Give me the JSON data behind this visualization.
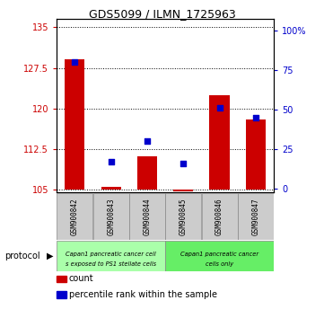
{
  "title": "GDS5099 / ILMN_1725963",
  "samples": [
    "GSM900842",
    "GSM900843",
    "GSM900844",
    "GSM900845",
    "GSM900846",
    "GSM900847"
  ],
  "bar_bottoms": [
    105,
    105,
    105,
    105,
    105,
    105
  ],
  "bar_tops": [
    129.0,
    105.6,
    111.2,
    104.7,
    122.5,
    118.0
  ],
  "percentile_values": [
    80.0,
    17.0,
    30.0,
    16.0,
    51.0,
    45.0
  ],
  "ylim_left": [
    104.5,
    136.5
  ],
  "ylim_right": [
    -2.5,
    107.5
  ],
  "yticks_left": [
    105,
    112.5,
    120,
    127.5,
    135
  ],
  "yticks_right": [
    0,
    25,
    50,
    75,
    100
  ],
  "ytick_labels_left": [
    "105",
    "112.5",
    "120",
    "127.5",
    "135"
  ],
  "ytick_labels_right": [
    "0",
    "25",
    "50",
    "75",
    "100%"
  ],
  "bar_color": "#cc0000",
  "dot_color": "#0000cc",
  "bar_width": 0.55,
  "dot_size": 20,
  "grid_color": "#000000",
  "bg_color": "#ffffff",
  "group1_color": "#aaffaa",
  "group2_color": "#66ee66",
  "label_box_color": "#cccccc"
}
